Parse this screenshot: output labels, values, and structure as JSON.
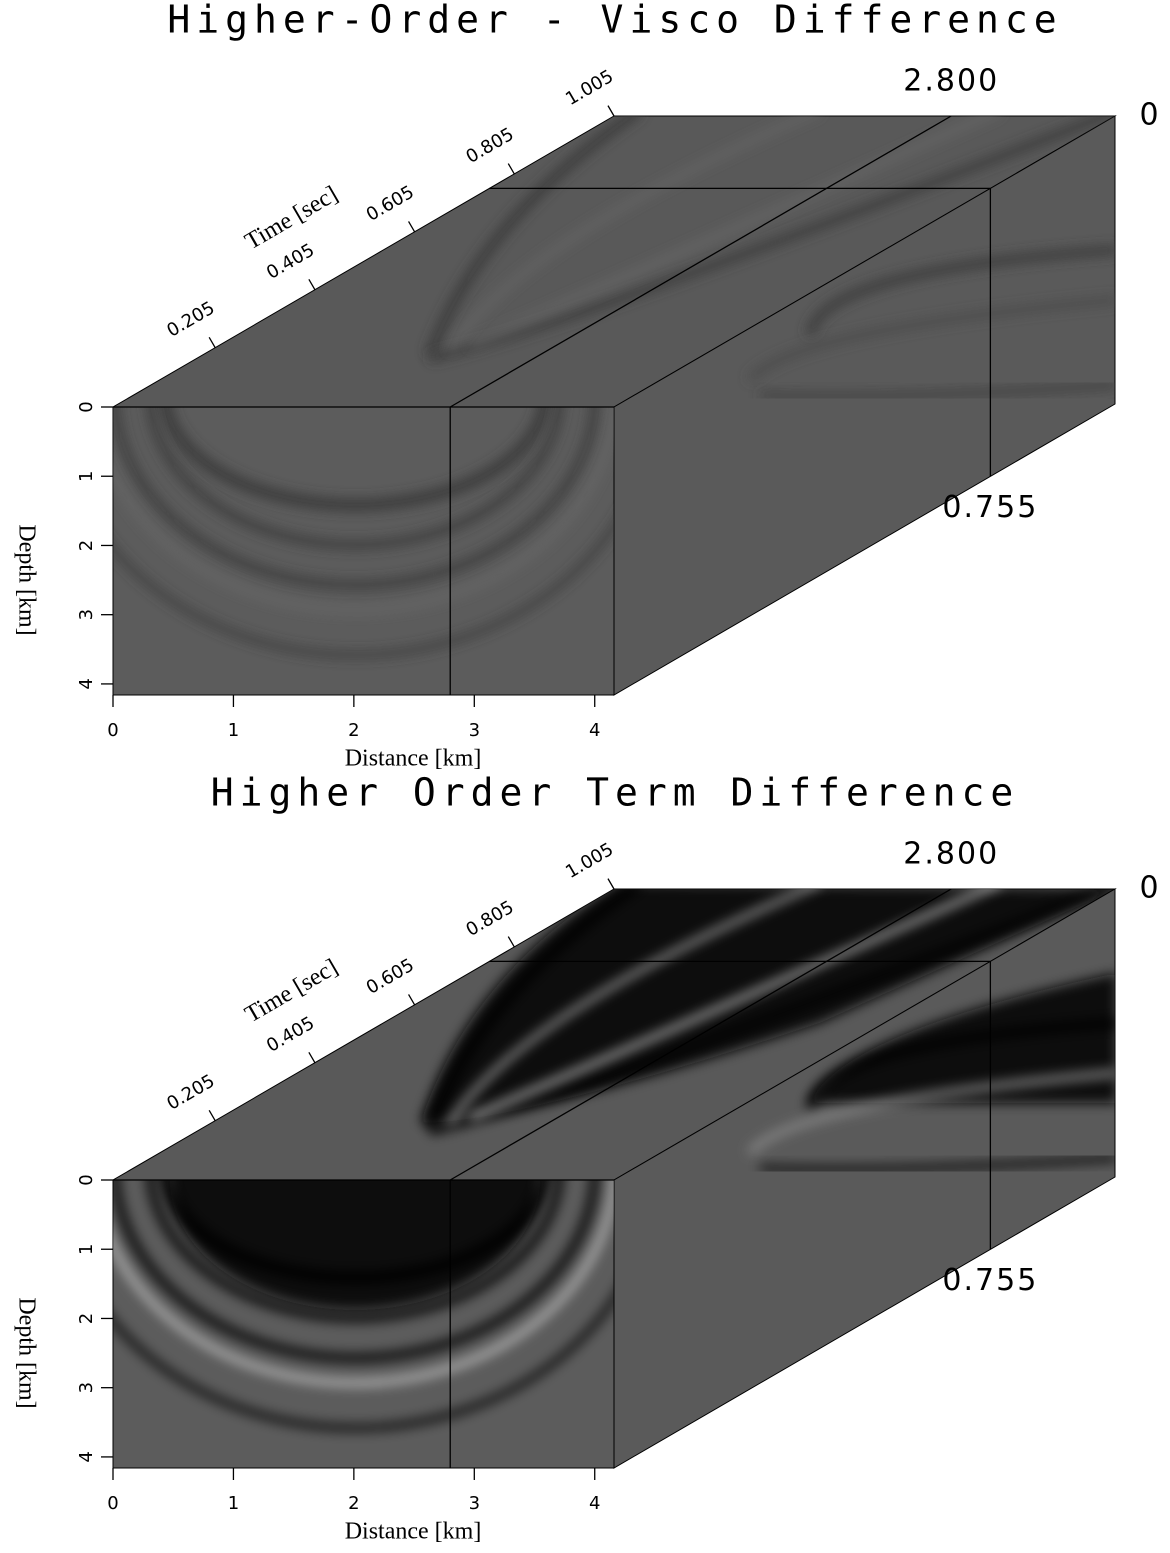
{
  "chart_data": [
    {
      "type": "cube",
      "title": "Higher-Order - Visco Difference",
      "xlabel": "Distance [km]",
      "ylabel": "Depth [km]",
      "zlabel": "Time [sec]",
      "xlim": [
        0,
        4.16
      ],
      "xticks": [
        0,
        1,
        2,
        3,
        4
      ],
      "ylim": [
        0,
        4.16
      ],
      "yticks": [
        0,
        1,
        2,
        3,
        4
      ],
      "zlim": [
        0,
        1.005
      ],
      "zticks": [
        0.205,
        0.405,
        0.605,
        0.805,
        1.005
      ],
      "x_slice": {
        "value": 2.8,
        "label": "2.800"
      },
      "y_slice": 0,
      "z_slice": 0.755
    },
    {
      "type": "cube",
      "title": "Higher Order Term Difference",
      "xlabel": "Distance [km]",
      "ylabel": "Depth [km]",
      "zlabel": "Time [sec]",
      "xlim": [
        0,
        4.16
      ],
      "xticks": [
        0,
        1,
        2,
        3,
        4
      ],
      "ylim": [
        0,
        4.16
      ],
      "yticks": [
        0,
        1,
        2,
        3,
        4
      ],
      "zlim": [
        0,
        1.005
      ],
      "zticks": [
        0.205,
        0.405,
        0.605,
        0.805,
        1.005
      ],
      "x_slice": {
        "value": 2.8,
        "label": "2.800"
      },
      "y_slice": 0,
      "z_slice": 0.755
    }
  ]
}
